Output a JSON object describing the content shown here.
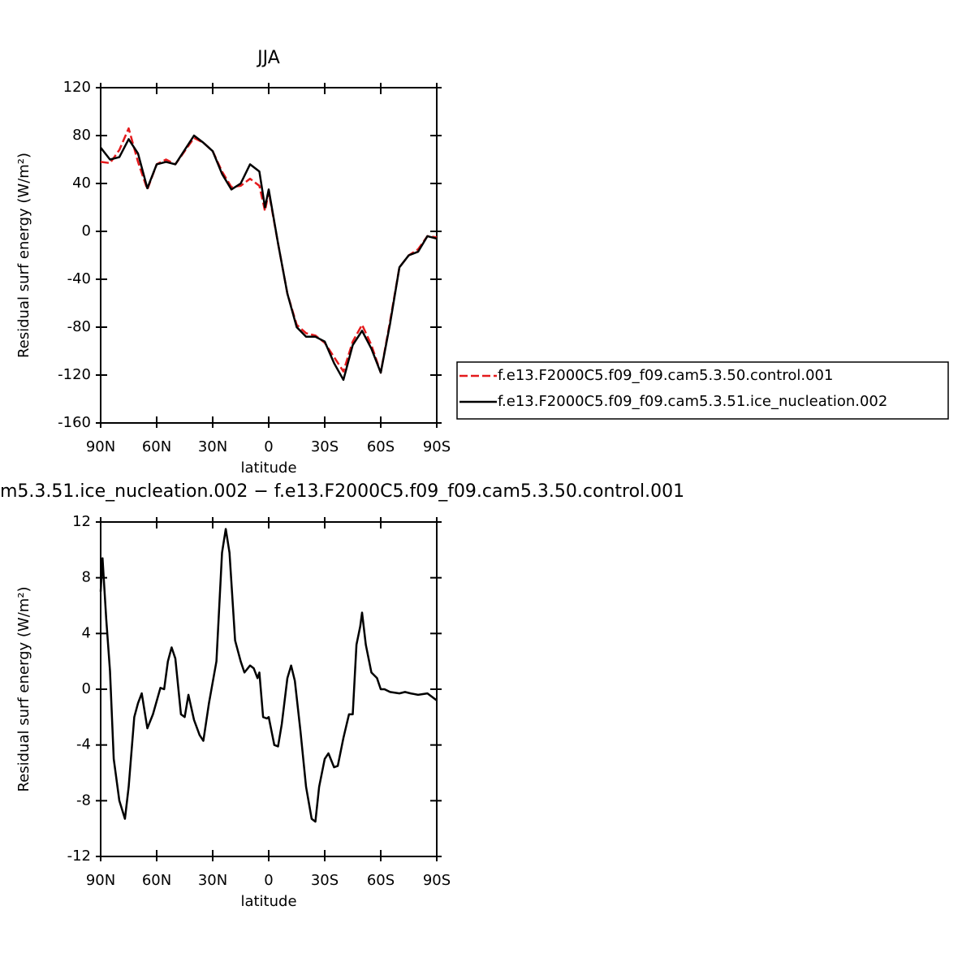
{
  "chart_data": [
    {
      "type": "line",
      "title": "JJA",
      "xlabel": "latitude",
      "ylabel": "Residual surf energy (W/m²)",
      "xlim": [
        90,
        -90
      ],
      "ylim": [
        -160,
        120
      ],
      "xticks": [
        {
          "value": 90,
          "label": "90N"
        },
        {
          "value": 60,
          "label": "60N"
        },
        {
          "value": 30,
          "label": "30N"
        },
        0,
        {
          "value": -30,
          "label": "30S"
        },
        {
          "value": -60,
          "label": "60S"
        },
        {
          "value": -90,
          "label": "90S"
        }
      ],
      "yticks": [
        -160,
        -120,
        -80,
        -40,
        0,
        40,
        80,
        120
      ],
      "x": [
        90,
        85,
        80,
        75,
        70,
        65,
        60,
        55,
        50,
        45,
        40,
        35,
        30,
        25,
        20,
        15,
        10,
        5,
        2,
        0,
        -5,
        -10,
        -15,
        -20,
        -25,
        -30,
        -35,
        -40,
        -45,
        -50,
        -55,
        -60,
        -65,
        -70,
        -75,
        -80,
        -85,
        -90
      ],
      "series": [
        {
          "name": "f.e13.F2000C5.f09_f09.cam5.3.50.control.001",
          "color": "#e41a1c",
          "dash": true,
          "values": [
            58,
            57,
            68,
            86,
            58,
            35,
            56,
            60,
            56,
            67,
            78,
            74,
            67,
            50,
            37,
            38,
            44,
            38,
            17,
            33,
            -10,
            -52,
            -78,
            -85,
            -87,
            -93,
            -105,
            -117,
            -92,
            -78,
            -95,
            -118,
            -75,
            -30,
            -20,
            -15,
            -4,
            -5
          ]
        },
        {
          "name": "f.e13.F2000C5.f09_f09.cam5.3.51.ice_nucleation.002",
          "color": "#000000",
          "dash": false,
          "values": [
            70,
            60,
            62,
            77,
            65,
            36,
            56,
            58,
            56,
            68,
            80,
            74,
            67,
            48,
            35,
            40,
            56,
            50,
            20,
            35,
            -10,
            -52,
            -80,
            -88,
            -88,
            -92,
            -110,
            -124,
            -95,
            -83,
            -98,
            -118,
            -77,
            -30,
            -20,
            -17,
            -4,
            -6
          ]
        }
      ],
      "legend": true
    },
    {
      "type": "line",
      "title": "m5.3.51.ice_nucleation.002 − f.e13.F2000C5.f09_f09.cam5.3.50.control.001",
      "xlabel": "latitude",
      "ylabel": "Residual surf energy (W/m²)",
      "xlim": [
        90,
        -90
      ],
      "ylim": [
        -12,
        12
      ],
      "xticks": [
        {
          "value": 90,
          "label": "90N"
        },
        {
          "value": 60,
          "label": "60N"
        },
        {
          "value": 30,
          "label": "30N"
        },
        0,
        {
          "value": -30,
          "label": "30S"
        },
        {
          "value": -60,
          "label": "60S"
        },
        {
          "value": -90,
          "label": "90S"
        }
      ],
      "yticks": [
        -12,
        -8,
        -4,
        0,
        4,
        8,
        12
      ],
      "x": [
        90,
        89,
        87,
        85,
        83,
        80,
        77,
        75,
        72,
        70,
        68,
        65,
        62,
        58,
        56,
        54,
        52,
        50,
        47,
        45,
        43,
        40,
        37,
        35,
        32,
        28,
        25,
        23,
        21,
        18,
        15,
        13,
        10,
        8,
        6,
        5,
        3,
        1,
        0,
        -3,
        -5,
        -7,
        -10,
        -12,
        -14,
        -17,
        -20,
        -23,
        -25,
        -27,
        -30,
        -32,
        -35,
        -37,
        -40,
        -43,
        -45,
        -47,
        -49,
        -50,
        -52,
        -55,
        -58,
        -60,
        -62,
        -65,
        -70,
        -73,
        -76,
        -80,
        -85,
        -90
      ],
      "series": [
        {
          "color": "#000000",
          "dash": false,
          "values": [
            7,
            9.4,
            5,
            1.3,
            -5,
            -8,
            -9.3,
            -7,
            -2,
            -1,
            -0.3,
            -2.8,
            -1.8,
            0.1,
            0,
            2,
            3,
            2.2,
            -1.8,
            -2,
            -0.4,
            -2.2,
            -3.3,
            -3.7,
            -1,
            2,
            9.8,
            11.5,
            9.8,
            3.5,
            2,
            1.2,
            1.7,
            1.5,
            0.8,
            1.2,
            -2,
            -2.1,
            -2,
            -4,
            -4.1,
            -2.5,
            0.8,
            1.7,
            0.6,
            -3,
            -7,
            -9.3,
            -9.5,
            -7,
            -5,
            -4.6,
            -5.6,
            -5.5,
            -3.5,
            -1.8,
            -1.8,
            3.2,
            4.5,
            5.5,
            3.2,
            1.2,
            0.8,
            0,
            0,
            -0.2,
            -0.3,
            -0.2,
            -0.3,
            -0.4,
            -0.3,
            -0.8
          ]
        }
      ],
      "legend": false
    }
  ]
}
